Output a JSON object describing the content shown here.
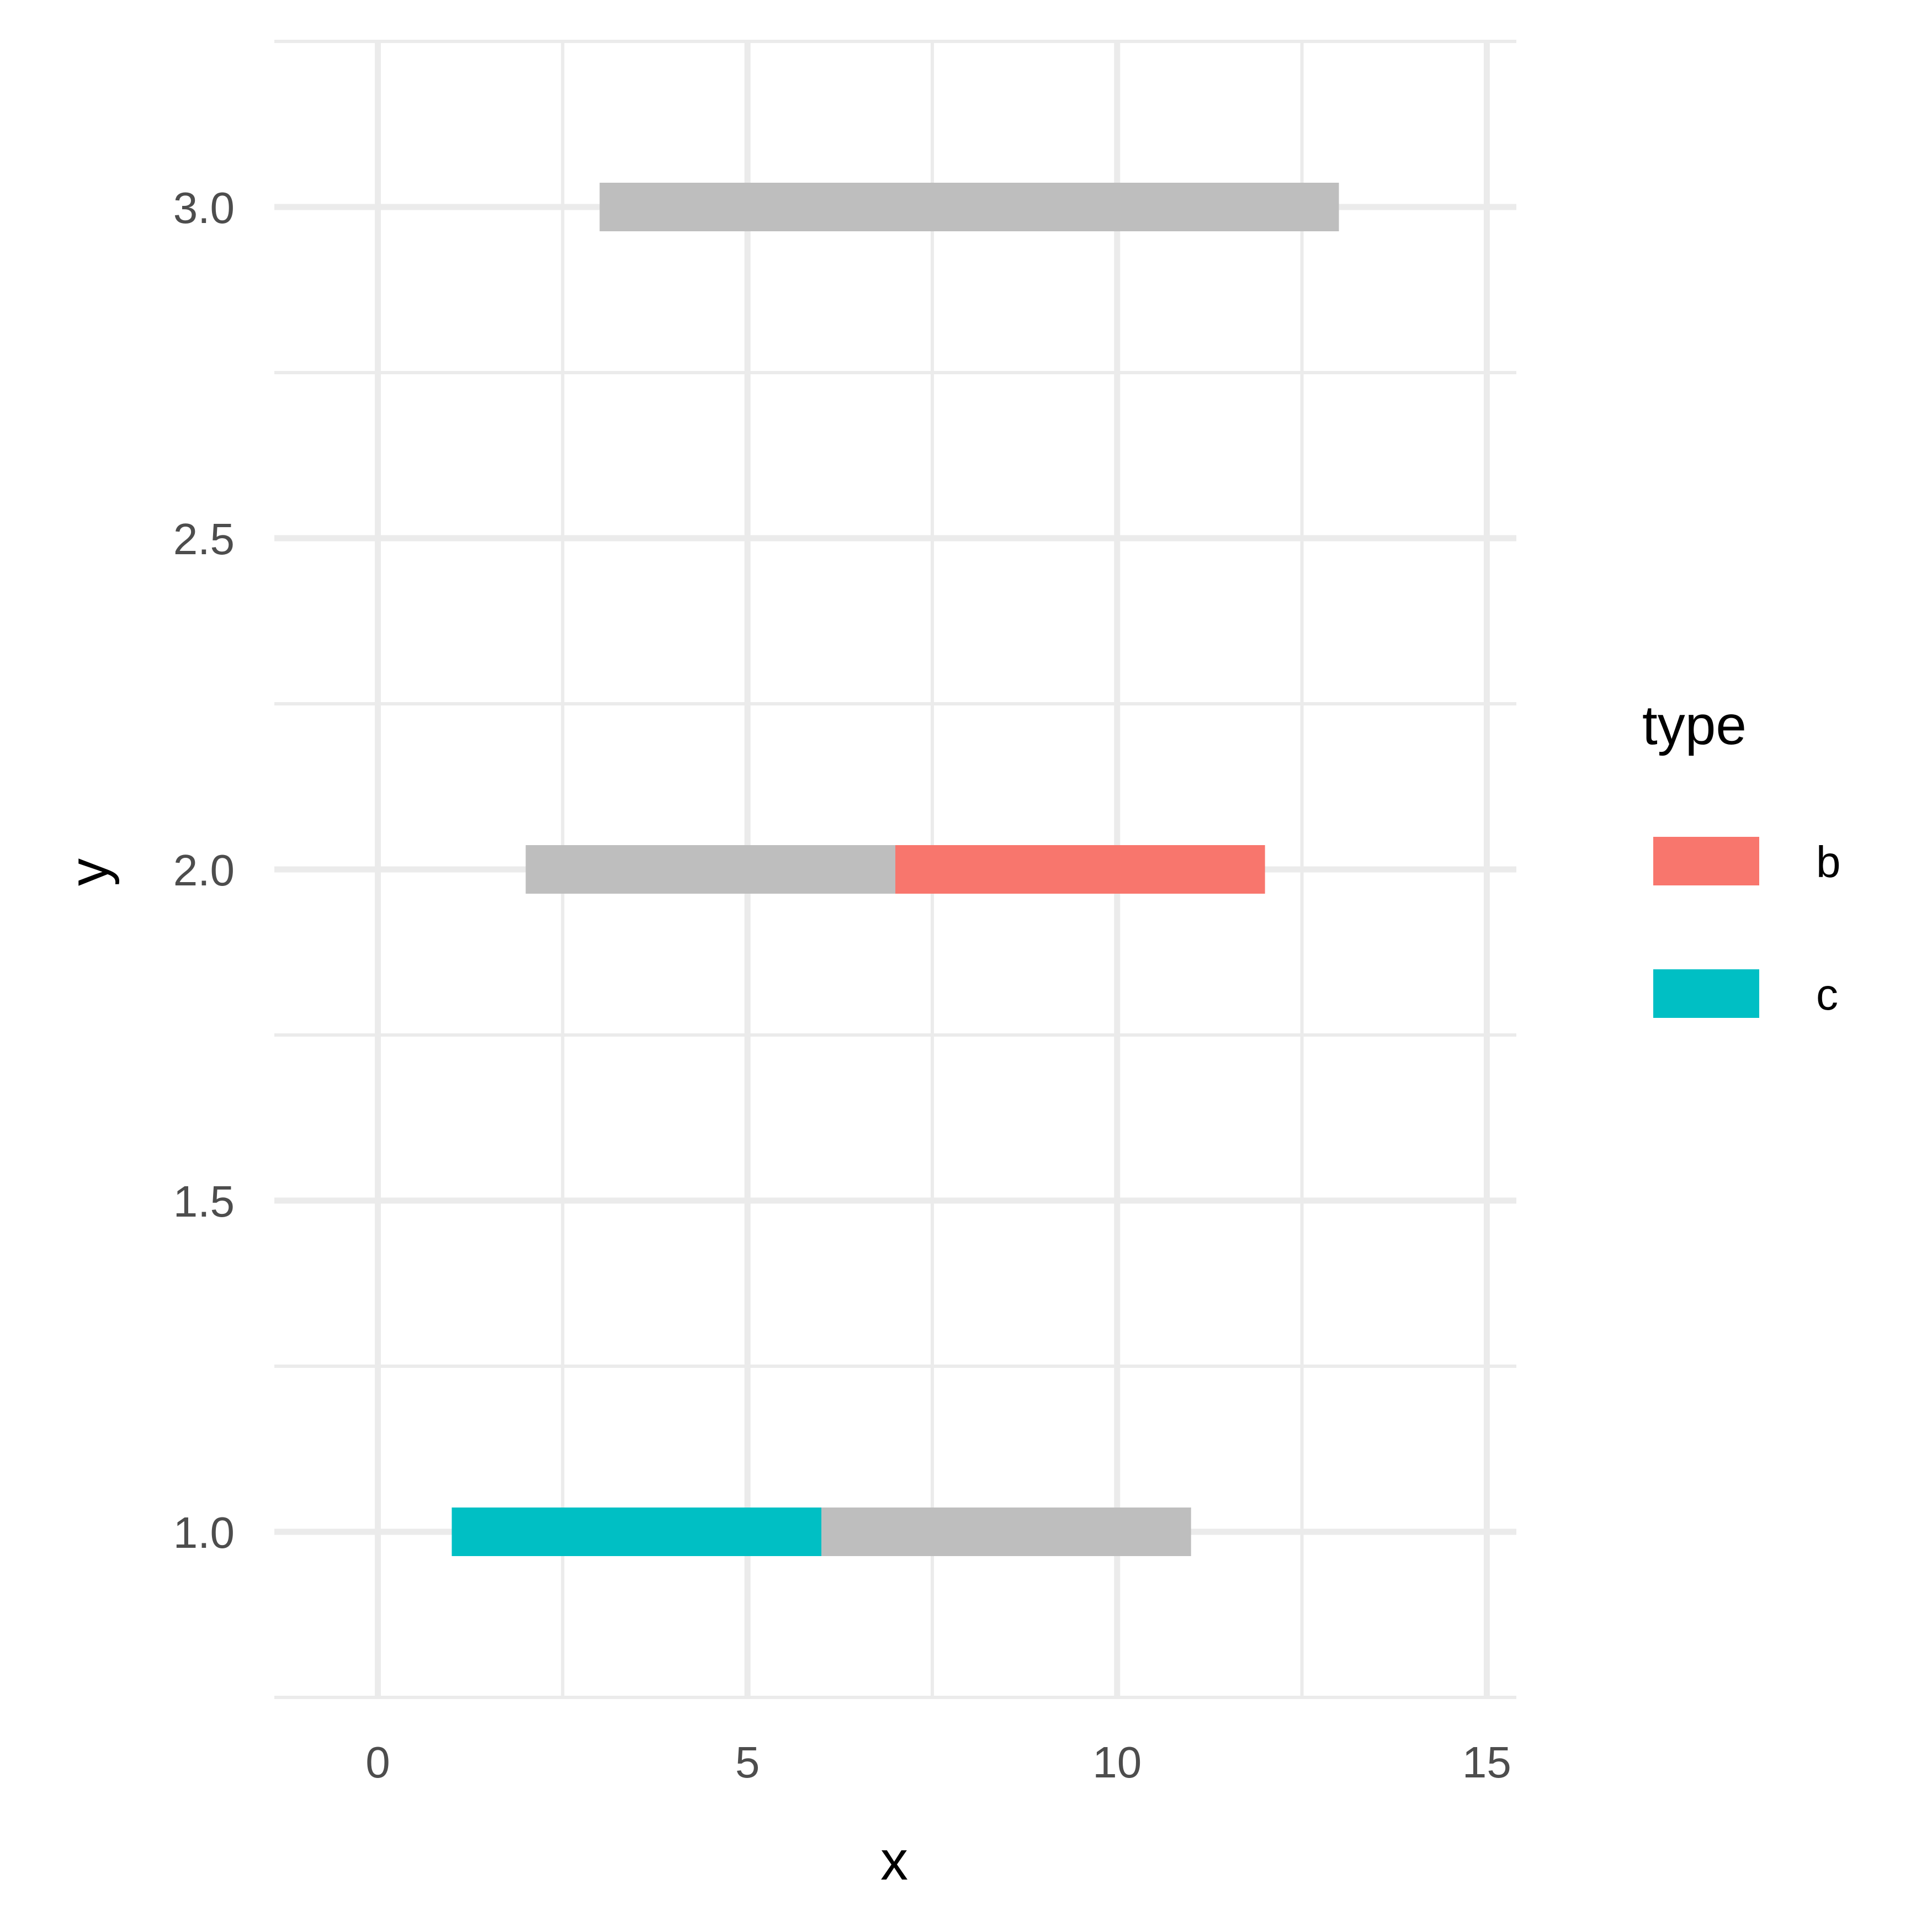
{
  "chart_data": {
    "type": "bar",
    "orientation": "horizontal-segments",
    "xlabel": "x",
    "ylabel": "y",
    "xlim": [
      -1.4,
      15.4
    ],
    "ylim": [
      0.75,
      3.25
    ],
    "x_ticks": [
      0,
      5,
      10,
      15
    ],
    "x_tick_labels": [
      "0",
      "5",
      "10",
      "15"
    ],
    "y_ticks": [
      1.0,
      1.5,
      2.0,
      2.5,
      3.0
    ],
    "y_tick_labels": [
      "1.0",
      "1.5",
      "2.0",
      "2.5",
      "3.0"
    ],
    "grid": true,
    "legend": {
      "title": "type",
      "placement": "right",
      "entries": [
        {
          "label": "b",
          "color": "#F8766D"
        },
        {
          "label": "c",
          "color": "#00BFC4"
        }
      ]
    },
    "segments": [
      {
        "y": 3,
        "x_start": 3,
        "x_end": 13,
        "type": "",
        "color": "#BEBEBE"
      },
      {
        "y": 2,
        "x_start": 2,
        "x_end": 7,
        "type": "",
        "color": "#BEBEBE"
      },
      {
        "y": 2,
        "x_start": 7,
        "x_end": 12,
        "type": "b",
        "color": "#F8766D"
      },
      {
        "y": 1,
        "x_start": 1,
        "x_end": 6,
        "type": "c",
        "color": "#00BFC4"
      },
      {
        "y": 1,
        "x_start": 6,
        "x_end": 11,
        "type": "",
        "color": "#BEBEBE"
      }
    ]
  }
}
